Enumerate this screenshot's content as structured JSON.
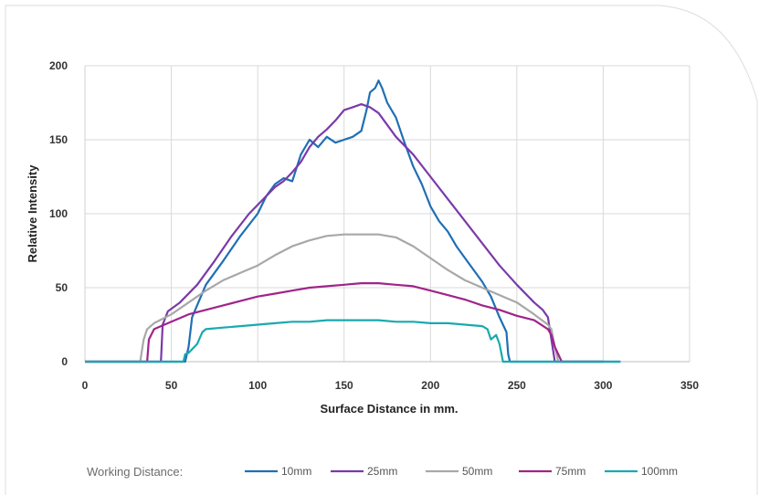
{
  "chart_data": {
    "type": "line",
    "title": "",
    "xlabel": "Surface Distance in mm.",
    "ylabel": "Relative Intensity",
    "xlim": [
      0,
      350
    ],
    "ylim": [
      0,
      200
    ],
    "xticks": [
      0,
      50,
      100,
      150,
      200,
      250,
      300,
      350
    ],
    "yticks": [
      0,
      50,
      100,
      150,
      200
    ],
    "grid": true,
    "legend_position": "bottom",
    "legend_title": "Working Distance:",
    "series": [
      {
        "name": "10mm",
        "color": "#1f6fb5",
        "x": [
          0,
          58,
          60,
          62,
          70,
          80,
          90,
          100,
          105,
          110,
          115,
          120,
          125,
          130,
          135,
          140,
          145,
          150,
          155,
          160,
          163,
          165,
          168,
          170,
          172,
          175,
          180,
          185,
          190,
          195,
          200,
          205,
          210,
          215,
          220,
          225,
          230,
          235,
          240,
          244,
          245,
          246,
          250,
          300,
          310
        ],
        "y": [
          0,
          0,
          10,
          30,
          52,
          68,
          85,
          100,
          112,
          120,
          124,
          122,
          140,
          150,
          145,
          152,
          148,
          150,
          152,
          156,
          170,
          182,
          185,
          190,
          185,
          175,
          165,
          148,
          132,
          120,
          105,
          95,
          88,
          78,
          70,
          62,
          54,
          44,
          30,
          20,
          5,
          0,
          0,
          0,
          0
        ]
      },
      {
        "name": "25mm",
        "color": "#7a3aa8",
        "x": [
          0,
          44,
          45,
          48,
          55,
          65,
          75,
          85,
          95,
          105,
          110,
          115,
          120,
          125,
          130,
          135,
          140,
          145,
          150,
          155,
          160,
          165,
          170,
          175,
          180,
          190,
          200,
          210,
          220,
          230,
          240,
          250,
          260,
          265,
          268,
          270,
          272,
          300
        ],
        "y": [
          0,
          0,
          25,
          34,
          40,
          52,
          68,
          85,
          100,
          112,
          118,
          122,
          128,
          135,
          145,
          152,
          157,
          163,
          170,
          172,
          174,
          172,
          168,
          160,
          152,
          140,
          125,
          110,
          95,
          80,
          65,
          52,
          40,
          35,
          30,
          15,
          0,
          0
        ]
      },
      {
        "name": "50mm",
        "color": "#a8a8a8",
        "x": [
          0,
          32,
          34,
          36,
          40,
          50,
          60,
          70,
          80,
          90,
          100,
          110,
          120,
          130,
          140,
          150,
          160,
          170,
          180,
          190,
          200,
          210,
          220,
          230,
          240,
          250,
          260,
          268,
          270,
          272,
          274,
          300
        ],
        "y": [
          0,
          0,
          15,
          22,
          26,
          32,
          40,
          48,
          55,
          60,
          65,
          72,
          78,
          82,
          85,
          86,
          86,
          86,
          84,
          78,
          70,
          62,
          55,
          50,
          45,
          40,
          32,
          25,
          22,
          10,
          0,
          0
        ]
      },
      {
        "name": "75mm",
        "color": "#a0248a",
        "x": [
          0,
          36,
          37,
          40,
          50,
          60,
          70,
          80,
          90,
          100,
          110,
          120,
          130,
          140,
          150,
          160,
          170,
          180,
          190,
          200,
          210,
          220,
          230,
          240,
          250,
          260,
          268,
          270,
          272,
          276,
          300
        ],
        "y": [
          0,
          0,
          15,
          22,
          27,
          32,
          35,
          38,
          41,
          44,
          46,
          48,
          50,
          51,
          52,
          53,
          53,
          52,
          51,
          48,
          45,
          42,
          38,
          35,
          31,
          28,
          22,
          18,
          10,
          0,
          0
        ]
      },
      {
        "name": "100mm",
        "color": "#1aa9b0",
        "x": [
          0,
          57,
          58,
          60,
          65,
          68,
          70,
          80,
          90,
          100,
          110,
          120,
          130,
          140,
          150,
          160,
          170,
          180,
          190,
          200,
          210,
          220,
          230,
          233,
          235,
          238,
          240,
          242,
          300,
          310
        ],
        "y": [
          0,
          0,
          5,
          6,
          12,
          20,
          22,
          23,
          24,
          25,
          26,
          27,
          27,
          28,
          28,
          28,
          28,
          27,
          27,
          26,
          26,
          25,
          24,
          22,
          15,
          18,
          12,
          0,
          0,
          0
        ]
      }
    ]
  }
}
